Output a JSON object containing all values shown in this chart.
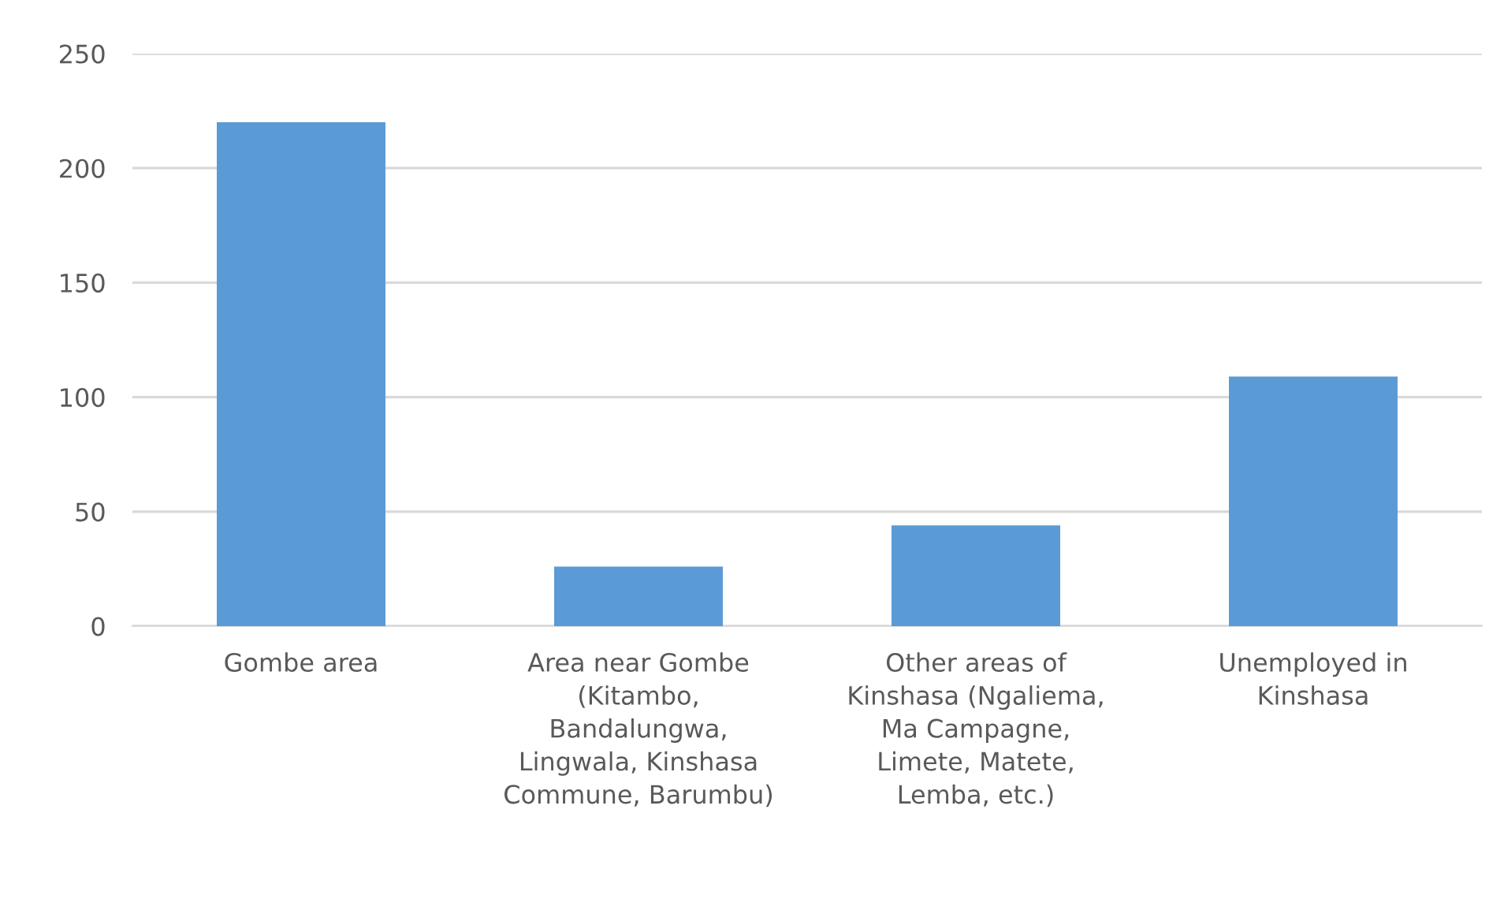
{
  "chart_data": {
    "type": "bar",
    "categories": [
      "Gombe area",
      "Area near Gombe\n(Kitambo,\nBandalungwa,\nLingwala, Kinshasa\nCommune, Barumbu)",
      "Other areas of\nKinshasa (Ngaliema,\nMa Campagne,\nLimete, Matete,\nLemba, etc.)",
      "Unemployed in\nKinshasa"
    ],
    "values": [
      220,
      26,
      44,
      109
    ],
    "color": "#5b9bd5",
    "ylim": [
      0,
      250
    ],
    "yticks": [
      0,
      50,
      100,
      150,
      200,
      250
    ],
    "grid": "y",
    "legend": false
  }
}
